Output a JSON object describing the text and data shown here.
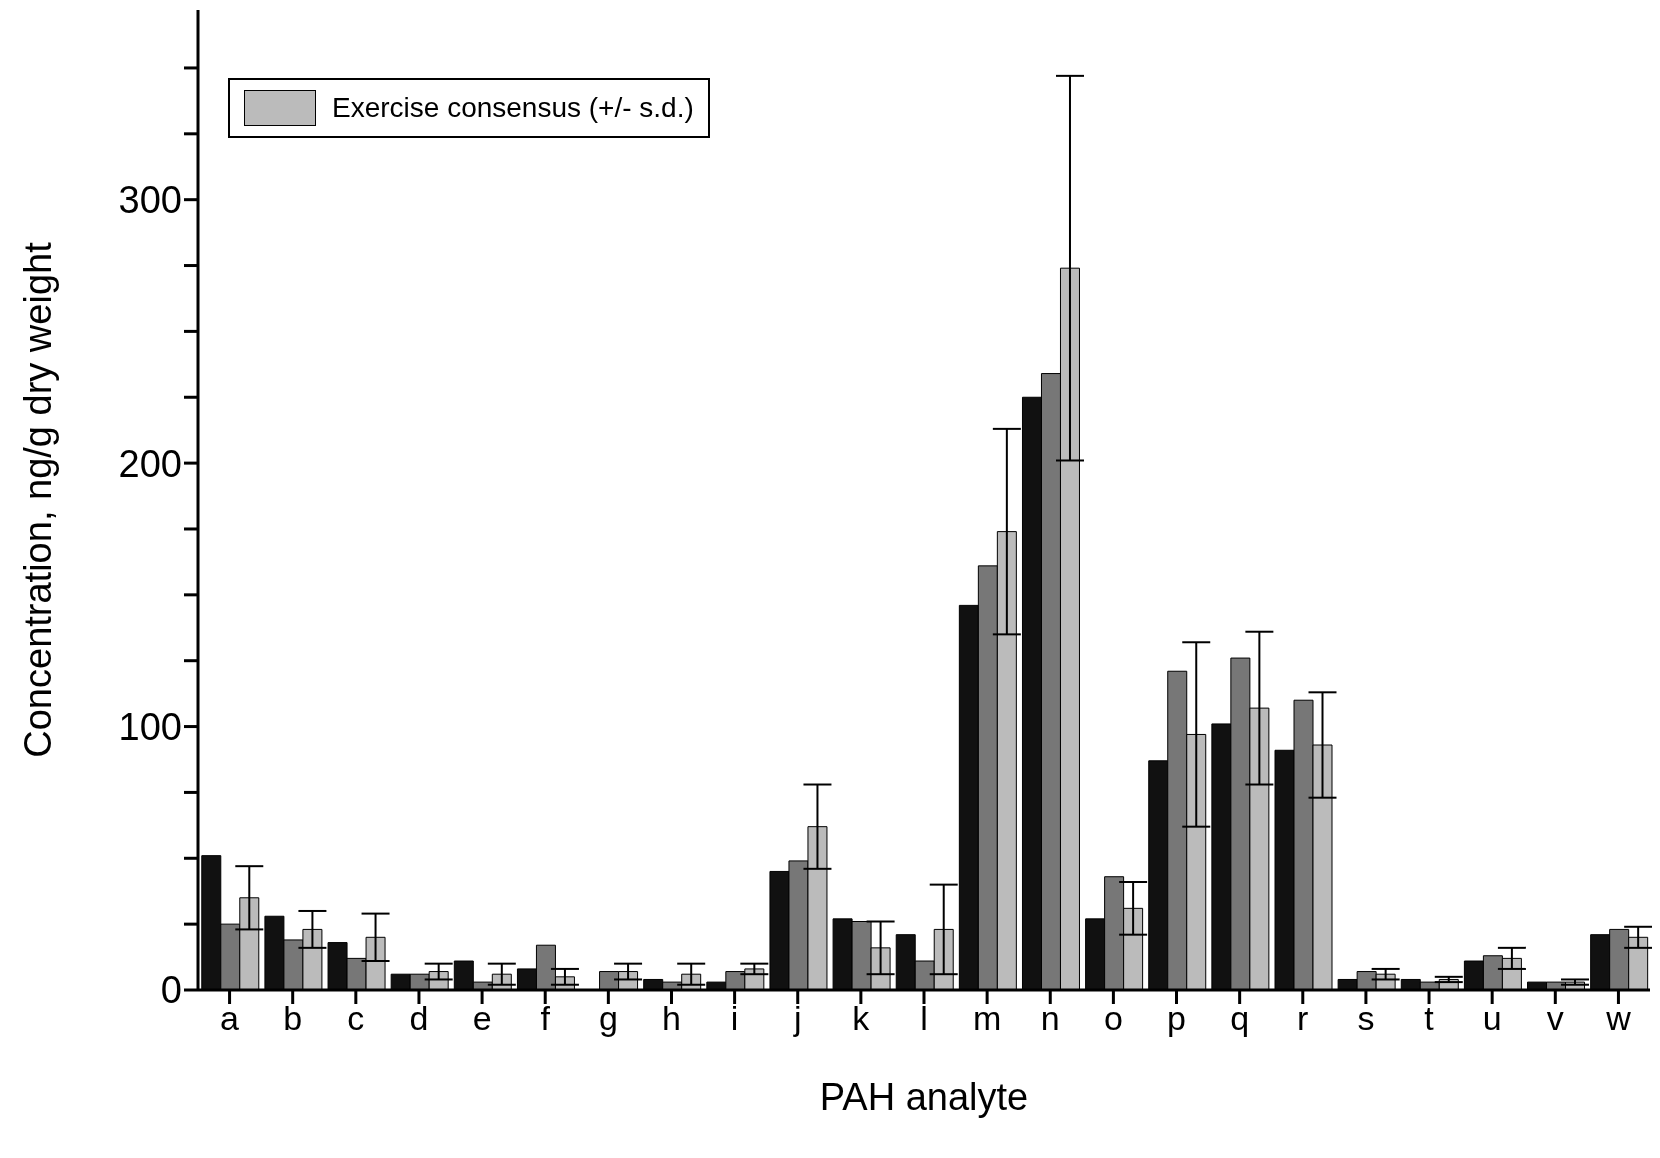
{
  "chart_data": {
    "type": "bar",
    "xlabel": "PAH analyte",
    "ylabel": "Concentration, ng/g dry weight",
    "categories": [
      "a",
      "b",
      "c",
      "d",
      "e",
      "f",
      "g",
      "h",
      "i",
      "j",
      "k",
      "l",
      "m",
      "n",
      "o",
      "p",
      "q",
      "r",
      "s",
      "t",
      "u",
      "v",
      "w"
    ],
    "series": [
      {
        "color": "#111111",
        "values": [
          51,
          28,
          18,
          6,
          11,
          8,
          0,
          4,
          3,
          45,
          27,
          21,
          146,
          225,
          27,
          87,
          101,
          91,
          4,
          4,
          11,
          3,
          21
        ]
      },
      {
        "color": "#777777",
        "values": [
          25,
          19,
          12,
          6,
          3,
          17,
          7,
          3,
          7,
          49,
          26,
          11,
          161,
          234,
          43,
          121,
          126,
          110,
          7,
          3,
          13,
          3,
          23
        ]
      },
      {
        "name": "Exercise consensus (+/- s.d.)",
        "color": "#bbbbbb",
        "values": [
          35,
          23,
          20,
          7,
          6,
          5,
          7,
          6,
          8,
          62,
          16,
          23,
          174,
          274,
          31,
          97,
          107,
          93,
          6,
          4,
          12,
          3,
          20
        ],
        "errors": [
          12,
          7,
          9,
          3,
          4,
          3,
          3,
          4,
          2,
          16,
          10,
          17,
          39,
          73,
          10,
          35,
          29,
          20,
          2,
          1,
          4,
          1,
          4
        ]
      }
    ],
    "ylim": [
      0,
      372
    ],
    "yticks": [
      0,
      {
        "value": 25,
        "label": null
      },
      {
        "value": 50,
        "label": null
      },
      {
        "value": 75,
        "label": null
      },
      100,
      {
        "value": 125,
        "label": null
      },
      {
        "value": 150,
        "label": null
      },
      {
        "value": 175,
        "label": null
      },
      200,
      {
        "value": 225,
        "label": null
      },
      {
        "value": 250,
        "label": null
      },
      {
        "value": 275,
        "label": null
      },
      300,
      {
        "value": 325,
        "label": null
      },
      {
        "value": 350,
        "label": null
      }
    ],
    "legend": "top left"
  }
}
